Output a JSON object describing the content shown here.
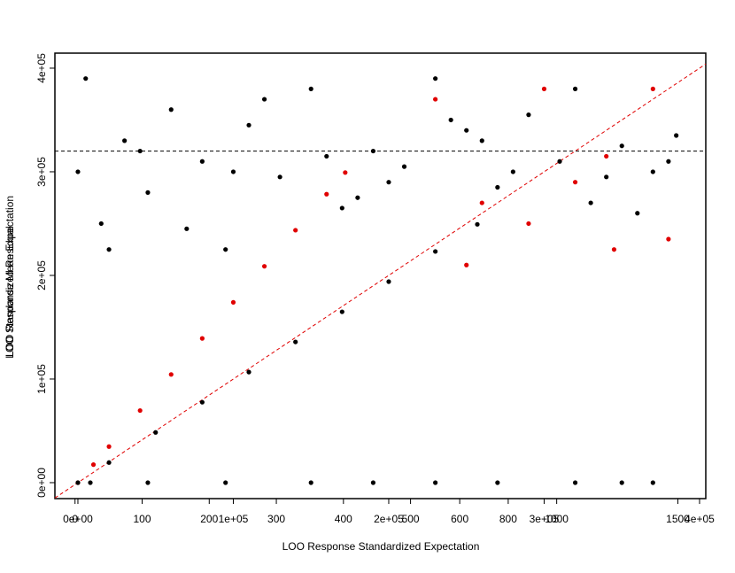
{
  "chart_data": {
    "type": "scatter",
    "xlabel": "LOO Response Standardized Expectation",
    "ylabel": "LOO Response Mean Expectation",
    "ylabel2": "LOO Standardized Residual",
    "xlim": [
      -14800,
      404000
    ],
    "ylim": [
      -15400,
      414500
    ],
    "xticks": [
      {
        "value": 0,
        "label": "0e+00"
      },
      {
        "value": 100000,
        "label": "1e+05"
      },
      {
        "value": 200000,
        "label": "2e+05"
      },
      {
        "value": 300000,
        "label": "3e+05"
      },
      {
        "value": 400000,
        "label": "4e+05"
      }
    ],
    "yticks": [
      {
        "value": 0,
        "label": "0e+00"
      },
      {
        "value": 100000,
        "label": "1e+05"
      },
      {
        "value": 200000,
        "label": "2e+05"
      },
      {
        "value": 300000,
        "label": "3e+05"
      },
      {
        "value": 400000,
        "label": "4e+05"
      }
    ],
    "x2lim": [
      -30,
      940
    ],
    "x2ticks": [
      0,
      100,
      200,
      300,
      400,
      500
    ],
    "x3lim": [
      -1070,
      1615
    ],
    "x3ticks": [
      600,
      800,
      1000,
      1500
    ],
    "hline": 320000,
    "hline_color": "#000000",
    "diag_color": "#e00000",
    "series": [
      {
        "color": "#000000",
        "x": [
          0,
          5000,
          15000,
          30000,
          45000,
          60000,
          80000,
          95000,
          110000,
          130000,
          150000,
          170000,
          190000,
          210000,
          230000,
          250000,
          270000,
          290000,
          310000,
          330000,
          350000,
          370000,
          385000,
          20000,
          70000,
          120000,
          160000,
          200000,
          240000,
          280000,
          320000,
          360000,
          380000,
          40000,
          100000,
          180000,
          260000,
          340000
        ],
        "values": [
          300000,
          390000,
          250000,
          330000,
          280000,
          360000,
          310000,
          225000,
          345000,
          295000,
          380000,
          265000,
          320000,
          305000,
          390000,
          340000,
          285000,
          355000,
          310000,
          270000,
          325000,
          300000,
          335000,
          225000,
          245000,
          370000,
          315000,
          290000,
          350000,
          300000,
          380000,
          260000,
          310000,
          320000,
          300000,
          275000,
          330000,
          295000
        ]
      },
      {
        "color": "#000000",
        "x": [
          8000,
          45000,
          95000,
          150000,
          190000,
          230000,
          270000,
          320000,
          350000,
          370000
        ],
        "values": [
          0,
          0,
          0,
          0,
          0,
          0,
          0,
          0,
          0,
          0
        ]
      },
      {
        "color": "#e00000",
        "x": [
          0,
          10000,
          20000,
          40000,
          60000,
          80000,
          100000,
          120000,
          140000,
          160000,
          172000
        ],
        "values": [
          0,
          17400,
          34800,
          69600,
          104400,
          139200,
          174000,
          208800,
          243600,
          278400,
          299300
        ]
      },
      {
        "color": "#000000",
        "x": [
          0,
          20000,
          50000,
          80000,
          110000,
          140000,
          170000,
          200000,
          230000,
          257000
        ],
        "values": [
          0,
          19400,
          48500,
          77600,
          106700,
          135800,
          164900,
          194000,
          223100,
          249300
        ]
      },
      {
        "color": "#e00000",
        "x": [
          230000,
          260000,
          300000,
          320000,
          345000,
          370000,
          380000,
          250000,
          290000,
          340000
        ],
        "values": [
          370000,
          270000,
          380000,
          290000,
          225000,
          380000,
          235000,
          210000,
          250000,
          315000
        ]
      }
    ]
  }
}
